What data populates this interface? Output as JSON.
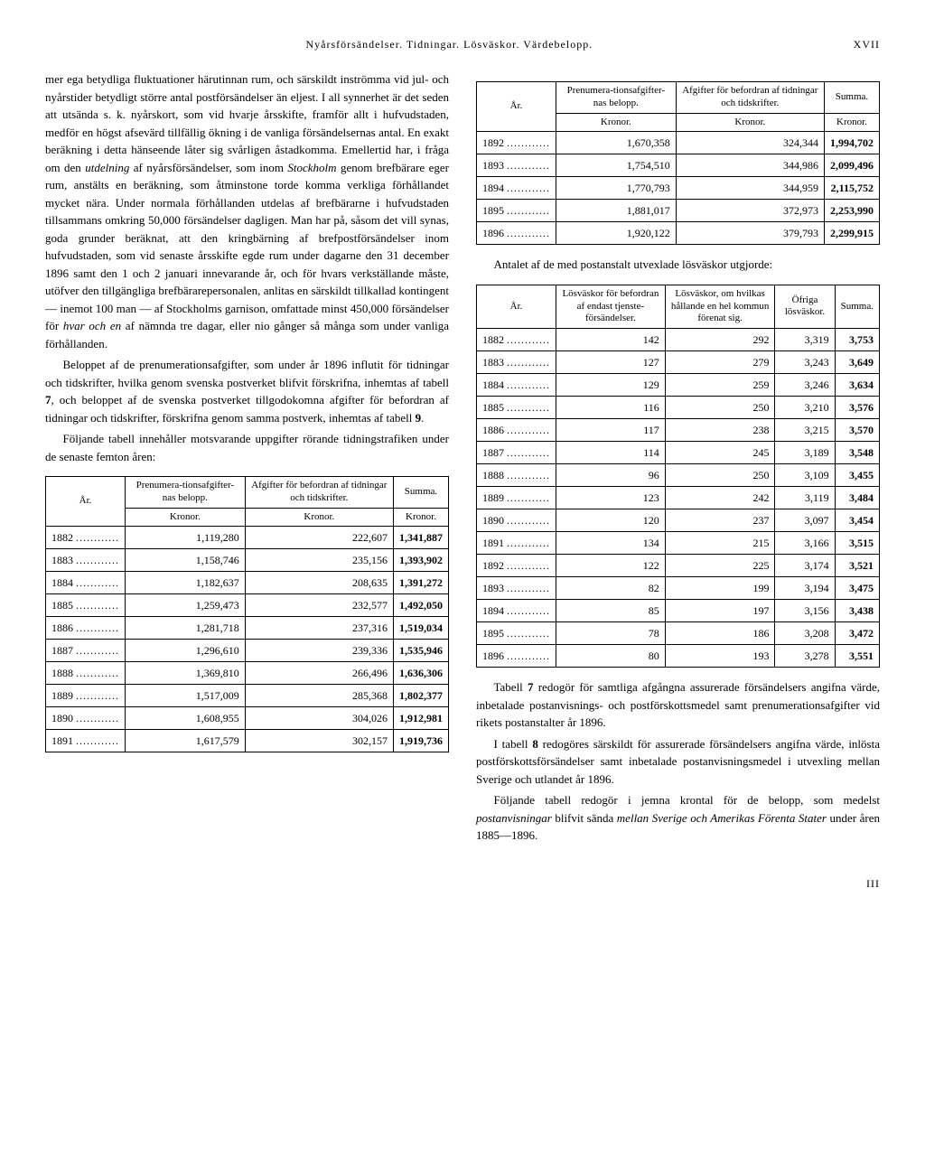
{
  "header": {
    "title": "Nyårsförsändelser.   Tidningar.   Lösväskor.   Värdebelopp.",
    "page_roman_top": "XVII",
    "page_roman_bottom": "III"
  },
  "left": {
    "para1": "mer ega betydliga fluktuationer härutinnan rum, och särskildt inströmma vid jul- och nyårstider betydligt större antal postförsändelser än eljest. I all synnerhet är det seden att utsända s. k. nyårskort, som vid hvarje årsskifte, framför allt i hufvudstaden, medför en högst afsevärd tillfällig ökning i de vanliga försändelsernas antal. En exakt beräkning i detta hänseende låter sig svårligen åstadkomma. Emellertid har, i fråga om den ",
    "para1_em1": "utdelning",
    "para1_mid": " af nyårsförsändelser, som inom ",
    "para1_em2": "Stockholm",
    "para1_cont": " genom brefbärare eger rum, anstälts en beräkning, som åtminstone torde komma verkliga förhållandet mycket nära. Under normala förhållanden utdelas af brefbärarne i hufvudstaden tillsammans omkring 50,000 försändelser dagligen. Man har på, såsom det vill synas, goda grunder beräknat, att den kringbärning af brefpostförsändelser inom hufvudstaden, som vid senaste årsskifte egde rum under dagarne den 31 december 1896 samt den 1 och 2 januari innevarande år, och för hvars verkställande måste, utöfver den tillgängliga brefbärarepersonalen, anlitas en särskildt tillkallad kontingent — inemot 100 man — af Stockholms garnison, omfattade minst 450,000 försändelser för ",
    "para1_em3": "hvar och en",
    "para1_end": " af nämnda tre dagar, eller nio gånger så många som under vanliga förhållanden.",
    "para2a": "Beloppet af de prenumerationsafgifter, som under år 1896 influtit för tidningar och tidskrifter, hvilka genom svenska postverket blifvit förskrifna, inhemtas af tabell ",
    "para2b": "7",
    "para2c": ", och beloppet af de svenska postverket tillgodokomna afgifter för befordran af tidningar och tidskrifter, förskrifna genom samma postverk, inhemtas af tabell ",
    "para2d": "9",
    "para2e": ".",
    "para3": "Följande tabell innehåller motsvarande uppgifter rörande tidningstrafiken under de senaste femton åren:",
    "table1": {
      "headers": {
        "year": "År.",
        "c1": "Prenumera-tionsafgifter-nas belopp.",
        "c1u": "Kronor.",
        "c2": "Afgifter för befordran af tidningar och tidskrifter.",
        "c2u": "Kronor.",
        "c3": "Summa.",
        "c3u": "Kronor."
      },
      "rows": [
        {
          "y": "1882",
          "a": "1,119,280",
          "b": "222,607",
          "s": "1,341,887"
        },
        {
          "y": "1883",
          "a": "1,158,746",
          "b": "235,156",
          "s": "1,393,902"
        },
        {
          "y": "1884",
          "a": "1,182,637",
          "b": "208,635",
          "s": "1,391,272"
        },
        {
          "y": "1885",
          "a": "1,259,473",
          "b": "232,577",
          "s": "1,492,050"
        },
        {
          "y": "1886",
          "a": "1,281,718",
          "b": "237,316",
          "s": "1,519,034"
        },
        {
          "y": "1887",
          "a": "1,296,610",
          "b": "239,336",
          "s": "1,535,946"
        },
        {
          "y": "1888",
          "a": "1,369,810",
          "b": "266,496",
          "s": "1,636,306"
        },
        {
          "y": "1889",
          "a": "1,517,009",
          "b": "285,368",
          "s": "1,802,377"
        },
        {
          "y": "1890",
          "a": "1,608,955",
          "b": "304,026",
          "s": "1,912,981"
        },
        {
          "y": "1891",
          "a": "1,617,579",
          "b": "302,157",
          "s": "1,919,736"
        }
      ]
    }
  },
  "right": {
    "table1b": {
      "headers": {
        "year": "År.",
        "c1": "Prenumera-tionsafgifter-nas belopp.",
        "c1u": "Kronor.",
        "c2": "Afgifter för befordran af tidningar och tidskrifter.",
        "c2u": "Kronor.",
        "c3": "Summa.",
        "c3u": "Kronor."
      },
      "rows": [
        {
          "y": "1892",
          "a": "1,670,358",
          "b": "324,344",
          "s": "1,994,702"
        },
        {
          "y": "1893",
          "a": "1,754,510",
          "b": "344,986",
          "s": "2,099,496"
        },
        {
          "y": "1894",
          "a": "1,770,793",
          "b": "344,959",
          "s": "2,115,752"
        },
        {
          "y": "1895",
          "a": "1,881,017",
          "b": "372,973",
          "s": "2,253,990"
        },
        {
          "y": "1896",
          "a": "1,920,122",
          "b": "379,793",
          "s": "2,299,915"
        }
      ]
    },
    "para4": "Antalet af de med postanstalt utvexlade lösväskor utgjorde:",
    "table2": {
      "headers": {
        "year": "År.",
        "c1": "Lösväskor för befordran af endast tjenste-försändelser.",
        "c2": "Lösväskor, om hvilkas hållande en hel kommun förenat sig.",
        "c3": "Öfriga lösväskor.",
        "c4": "Summa."
      },
      "rows": [
        {
          "y": "1882",
          "a": "142",
          "b": "292",
          "c": "3,319",
          "s": "3,753"
        },
        {
          "y": "1883",
          "a": "127",
          "b": "279",
          "c": "3,243",
          "s": "3,649"
        },
        {
          "y": "1884",
          "a": "129",
          "b": "259",
          "c": "3,246",
          "s": "3,634"
        },
        {
          "y": "1885",
          "a": "116",
          "b": "250",
          "c": "3,210",
          "s": "3,576"
        },
        {
          "y": "1886",
          "a": "117",
          "b": "238",
          "c": "3,215",
          "s": "3,570"
        },
        {
          "y": "1887",
          "a": "114",
          "b": "245",
          "c": "3,189",
          "s": "3,548"
        },
        {
          "y": "1888",
          "a": "96",
          "b": "250",
          "c": "3,109",
          "s": "3,455"
        },
        {
          "y": "1889",
          "a": "123",
          "b": "242",
          "c": "3,119",
          "s": "3,484"
        },
        {
          "y": "1890",
          "a": "120",
          "b": "237",
          "c": "3,097",
          "s": "3,454"
        },
        {
          "y": "1891",
          "a": "134",
          "b": "215",
          "c": "3,166",
          "s": "3,515"
        },
        {
          "y": "1892",
          "a": "122",
          "b": "225",
          "c": "3,174",
          "s": "3,521"
        },
        {
          "y": "1893",
          "a": "82",
          "b": "199",
          "c": "3,194",
          "s": "3,475"
        },
        {
          "y": "1894",
          "a": "85",
          "b": "197",
          "c": "3,156",
          "s": "3,438"
        },
        {
          "y": "1895",
          "a": "78",
          "b": "186",
          "c": "3,208",
          "s": "3,472"
        },
        {
          "y": "1896",
          "a": "80",
          "b": "193",
          "c": "3,278",
          "s": "3,551"
        }
      ]
    },
    "para5a": "Tabell ",
    "para5b": "7",
    "para5c": " redogör för samtliga afgångna assurerade försändelsers angifna värde, inbetalade postanvisnings- och postförskottsmedel samt prenumerationsafgifter vid rikets postanstalter år 1896.",
    "para6a": "I tabell ",
    "para6b": "8",
    "para6c": " redogöres särskildt för assurerade försändelsers angifna värde, inlösta postförskottsförsändelser samt inbetalade postanvisningsmedel i utvexling mellan Sverige och utlandet år 1896.",
    "para7a": "Följande tabell redogör i jemna krontal för de belopp, som medelst ",
    "para7em1": "postanvisningar",
    "para7b": " blifvit sända ",
    "para7em2": "mellan Sverige och Amerikas Förenta Stater",
    "para7c": " under åren 1885—1896."
  }
}
